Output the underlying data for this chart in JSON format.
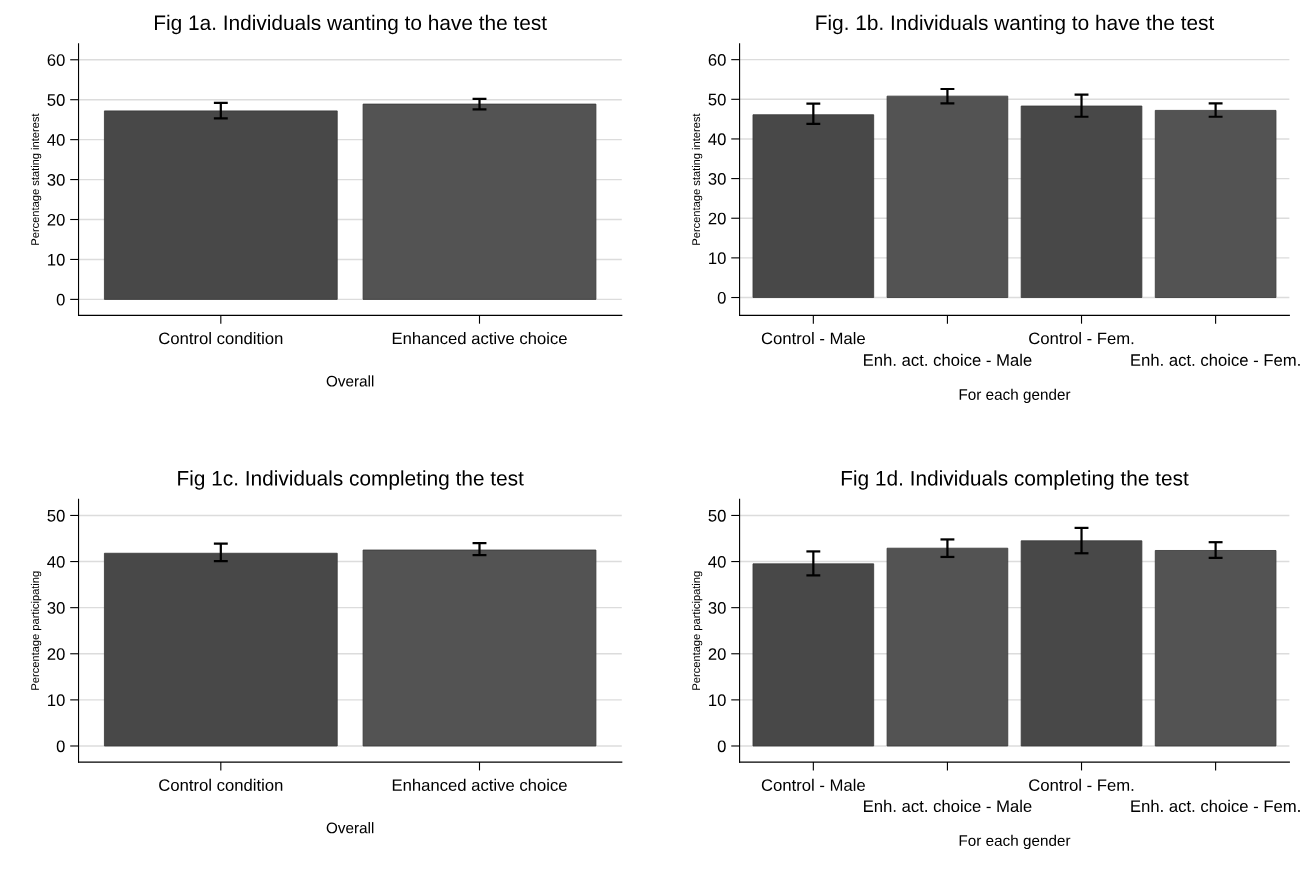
{
  "chart_data": [
    {
      "type": "bar",
      "title": "Fig 1a. Individuals wanting to have the test",
      "ylabel": "Percentage stating interest",
      "xlabel": "Overall",
      "categories": [
        "Control condition",
        "Enhanced active choice"
      ],
      "values": [
        47.2,
        48.9
      ],
      "colors": [
        "#484848",
        "#535353"
      ],
      "errors": [
        [
          45.3,
          49.2
        ],
        [
          47.6,
          50.2
        ]
      ],
      "ylim": [
        -4,
        64
      ],
      "yticks": [
        0,
        10,
        20,
        30,
        40,
        50,
        60
      ],
      "grid": "y"
    },
    {
      "type": "bar",
      "title": "Fig. 1b. Individuals wanting to have the test",
      "ylabel": "Percentage stating interest",
      "xlabel": "For each gender",
      "categories": [
        "Control - Male",
        "Enh. act. choice - Male",
        "Control - Fem.",
        "Enh. act. choice - Fem."
      ],
      "values": [
        46.1,
        50.8,
        48.3,
        47.2
      ],
      "colors": [
        "#484848",
        "#535353",
        "#484848",
        "#535353"
      ],
      "errors": [
        [
          43.8,
          48.9
        ],
        [
          49.0,
          52.6
        ],
        [
          45.6,
          51.2
        ],
        [
          45.6,
          49.0
        ]
      ],
      "ylim": [
        -4.5,
        64
      ],
      "yticks": [
        0,
        10,
        20,
        30,
        40,
        50,
        60
      ],
      "grid": "y"
    },
    {
      "type": "bar",
      "title": "Fig 1c. Individuals completing the test",
      "ylabel": "Percentage participating",
      "xlabel": "Overall",
      "categories": [
        "Control condition",
        "Enhanced active choice"
      ],
      "values": [
        41.8,
        42.5
      ],
      "colors": [
        "#484848",
        "#535353"
      ],
      "errors": [
        [
          40.1,
          43.9
        ],
        [
          41.4,
          44.0
        ]
      ],
      "ylim": [
        -3.5,
        53.5
      ],
      "yticks": [
        0,
        10,
        20,
        30,
        40,
        50
      ],
      "grid": "y"
    },
    {
      "type": "bar",
      "title": "Fig 1d. Individuals completing the test",
      "ylabel": "Percentage participating",
      "xlabel": "For each gender",
      "categories": [
        "Control - Male",
        "Enh. act. choice - Male",
        "Control - Fem.",
        "Enh. act. choice - Fem."
      ],
      "values": [
        39.5,
        42.9,
        44.5,
        42.4
      ],
      "colors": [
        "#484848",
        "#535353",
        "#484848",
        "#535353"
      ],
      "errors": [
        [
          37.0,
          42.2
        ],
        [
          41.0,
          44.8
        ],
        [
          41.8,
          47.3
        ],
        [
          40.8,
          44.2
        ]
      ],
      "ylim": [
        -3.5,
        53.5
      ],
      "yticks": [
        0,
        10,
        20,
        30,
        40,
        50
      ],
      "grid": "y"
    }
  ]
}
